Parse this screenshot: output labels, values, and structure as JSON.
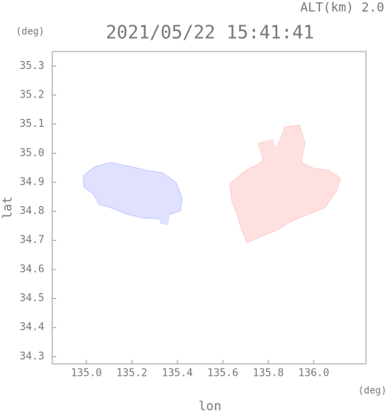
{
  "chart_data": {
    "type": "map",
    "title": "2021/05/22 15:41:41",
    "altitude_label": "ALT(km) 2.0",
    "x_label": "lon",
    "y_label": "lat",
    "x_unit": "(deg)",
    "y_unit": "(deg)",
    "xlim": [
      134.85,
      136.23
    ],
    "ylim": [
      34.275,
      35.35
    ],
    "xticks": [
      {
        "value": 135,
        "label": "135.0"
      },
      135.2,
      135.4,
      135.6,
      135.8,
      {
        "value": 136,
        "label": "136.0"
      }
    ],
    "yticks": [
      34.3,
      34.4,
      34.5,
      34.6,
      34.7,
      34.8,
      34.9,
      {
        "value": 35,
        "label": "35.0"
      },
      35.1,
      35.2,
      35.3
    ]
  }
}
